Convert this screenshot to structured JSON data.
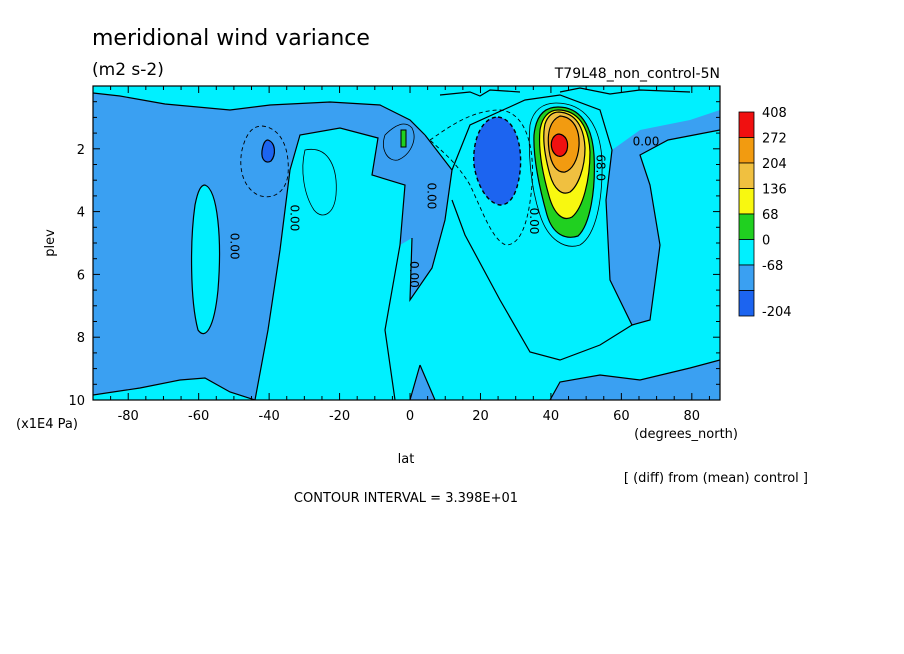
{
  "title": "meridional wind variance",
  "units": "(m2 s-2)",
  "experiment": "T79L48_non_control-5N",
  "note": "[ (diff) from (mean) control ]",
  "contour_interval_text": "CONTOUR INTERVAL = 3.398E+01",
  "colors": {
    "c_neg204": "#1c64f0",
    "c_neg68": "#3aa0f2",
    "c_0": "#00f0ff",
    "c_68": "#20d020",
    "c_136": "#f8f810",
    "c_204": "#f0c040",
    "c_272": "#f29b10",
    "c_408": "#f01010",
    "frame": "#000000"
  },
  "chart_data": {
    "type": "contour",
    "xlabel": "lat",
    "xunit_label": "(degrees_north)",
    "ylabel": "plev",
    "yunit_label": "(x1E4 Pa)",
    "xlim": [
      -90,
      88
    ],
    "ylim": [
      10,
      0
    ],
    "x_ticks": [
      -80,
      -60,
      -40,
      -20,
      0,
      20,
      40,
      60,
      80
    ],
    "x_tick_labels": [
      "-80",
      "-60",
      "-40",
      "-20",
      "0",
      "20",
      "40",
      "60",
      "80"
    ],
    "y_ticks": [
      2,
      4,
      6,
      8,
      10
    ],
    "y_tick_labels": [
      "2",
      "4",
      "6",
      "8",
      "10"
    ],
    "colorbar": {
      "levels": [
        "408",
        "272",
        "204",
        "136",
        "68",
        "0",
        "-68",
        "-204"
      ],
      "colors": [
        "#f01010",
        "#f29b10",
        "#f0c040",
        "#f8f810",
        "#20d020",
        "#00f0ff",
        "#3aa0f2",
        "#1c64f0"
      ]
    },
    "contour_labels": [
      {
        "text": "0.00",
        "lat": -51,
        "plev": 5.1
      },
      {
        "text": "0.00",
        "lat": -34,
        "plev": 4.2
      },
      {
        "text": "0.00",
        "lat": 5,
        "plev": 3.5
      },
      {
        "text": "0.00",
        "lat": 0,
        "plev": 6.0
      },
      {
        "text": "0.00",
        "lat": 34,
        "plev": 4.3
      },
      {
        "text": "68.0",
        "lat": 53,
        "plev": 2.6
      },
      {
        "text": "0.00",
        "lat": 67,
        "plev": 1.9
      }
    ],
    "features": [
      {
        "name": "positive maximum",
        "lat": 43,
        "plev": 2.0,
        "value_level": "408"
      },
      {
        "name": "negative minimum",
        "lat": 27,
        "plev": 2.4,
        "value_level": "-204"
      },
      {
        "name": "negative minimum",
        "lat": -39,
        "plev": 2.1,
        "value_level": "-204"
      }
    ]
  }
}
